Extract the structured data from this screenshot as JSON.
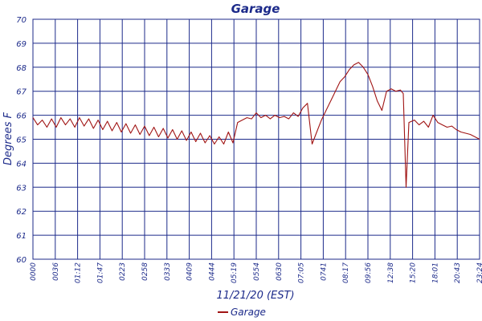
{
  "chart_data": {
    "type": "line",
    "title": "Garage",
    "xlabel": "11/21/20 (EST)",
    "ylabel": "Degrees F",
    "ylim": [
      60,
      70
    ],
    "yticks": [
      60,
      61,
      62,
      63,
      64,
      65,
      66,
      67,
      68,
      69,
      70
    ],
    "xticks": [
      "0000",
      "0036",
      "01:12",
      "01:47",
      "0223",
      "0258",
      "0333",
      "0409",
      "0444",
      "05:19",
      "0554",
      "0630",
      "07:05",
      "0741",
      "08:17",
      "09:56",
      "12:38",
      "15:20",
      "18:01",
      "20:43",
      "23:24"
    ],
    "grid": true,
    "legend_position": "bottom-center",
    "colors": {
      "series": "#a01414",
      "grid": "#1c2a8a",
      "text": "#1c2a8a"
    },
    "series": [
      {
        "name": "Garage",
        "points": [
          [
            0,
            65.9
          ],
          [
            0.5,
            65.6
          ],
          [
            1,
            65.8
          ],
          [
            1.5,
            65.5
          ],
          [
            2,
            65.85
          ],
          [
            2.5,
            65.5
          ],
          [
            3,
            65.9
          ],
          [
            3.5,
            65.6
          ],
          [
            4,
            65.85
          ],
          [
            4.5,
            65.5
          ],
          [
            5,
            65.9
          ],
          [
            5.5,
            65.55
          ],
          [
            6,
            65.85
          ],
          [
            6.5,
            65.45
          ],
          [
            7,
            65.8
          ],
          [
            7.5,
            65.4
          ],
          [
            8,
            65.75
          ],
          [
            8.5,
            65.35
          ],
          [
            9,
            65.7
          ],
          [
            9.5,
            65.3
          ],
          [
            10,
            65.65
          ],
          [
            10.5,
            65.25
          ],
          [
            11,
            65.6
          ],
          [
            11.5,
            65.2
          ],
          [
            12,
            65.55
          ],
          [
            12.5,
            65.15
          ],
          [
            13,
            65.5
          ],
          [
            13.5,
            65.1
          ],
          [
            14,
            65.45
          ],
          [
            14.5,
            65.05
          ],
          [
            15,
            65.4
          ],
          [
            15.5,
            65.0
          ],
          [
            16,
            65.35
          ],
          [
            16.5,
            64.95
          ],
          [
            17,
            65.3
          ],
          [
            17.5,
            64.9
          ],
          [
            18,
            65.25
          ],
          [
            18.5,
            64.85
          ],
          [
            19,
            65.15
          ],
          [
            19.5,
            64.8
          ],
          [
            20,
            65.1
          ],
          [
            20.5,
            64.8
          ],
          [
            21,
            65.3
          ],
          [
            21.5,
            64.85
          ],
          [
            22,
            65.7
          ],
          [
            22.5,
            65.8
          ],
          [
            23,
            65.9
          ],
          [
            23.5,
            65.85
          ],
          [
            24,
            66.1
          ],
          [
            24.5,
            65.9
          ],
          [
            25,
            66.0
          ],
          [
            25.5,
            65.85
          ],
          [
            26,
            66.0
          ],
          [
            26.5,
            65.9
          ],
          [
            27,
            65.95
          ],
          [
            27.5,
            65.85
          ],
          [
            28,
            66.1
          ],
          [
            28.5,
            65.95
          ],
          [
            29,
            66.3
          ],
          [
            29.5,
            66.5
          ],
          [
            30,
            64.8
          ],
          [
            30.5,
            65.3
          ],
          [
            31,
            65.8
          ],
          [
            31.5,
            66.2
          ],
          [
            32,
            66.6
          ],
          [
            32.5,
            67.0
          ],
          [
            33,
            67.4
          ],
          [
            33.5,
            67.6
          ],
          [
            34,
            67.9
          ],
          [
            34.5,
            68.1
          ],
          [
            35,
            68.2
          ],
          [
            35.5,
            68.0
          ],
          [
            36,
            67.7
          ],
          [
            36.5,
            67.2
          ],
          [
            37,
            66.6
          ],
          [
            37.5,
            66.2
          ],
          [
            38,
            67.0
          ],
          [
            38.5,
            67.1
          ],
          [
            39,
            67.0
          ],
          [
            39.5,
            67.05
          ],
          [
            39.8,
            66.9
          ],
          [
            40.1,
            63.0
          ],
          [
            40.4,
            65.7
          ],
          [
            41,
            65.8
          ],
          [
            41.5,
            65.6
          ],
          [
            42,
            65.75
          ],
          [
            42.5,
            65.5
          ],
          [
            43,
            66.0
          ],
          [
            43.5,
            65.7
          ],
          [
            44,
            65.6
          ],
          [
            44.5,
            65.5
          ],
          [
            45,
            65.55
          ],
          [
            45.5,
            65.4
          ],
          [
            46,
            65.3
          ],
          [
            46.5,
            65.25
          ],
          [
            47,
            65.2
          ],
          [
            47.5,
            65.1
          ],
          [
            48,
            65.0
          ]
        ]
      }
    ]
  }
}
